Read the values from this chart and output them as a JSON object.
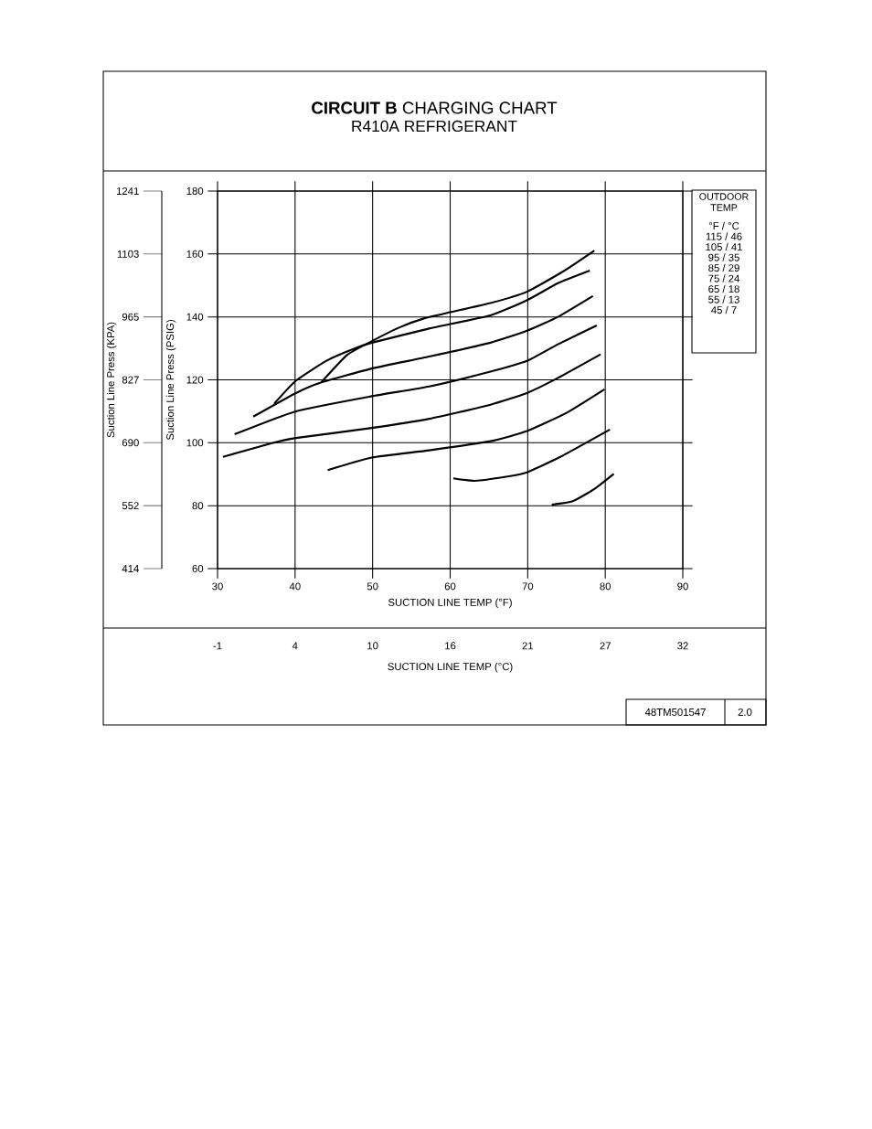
{
  "chart_data": {
    "type": "line",
    "title": "**CIRCUIT B** CHARGING CHART",
    "subtitle": "R410A REFRIGERANT",
    "xlabel": "SUCTION LINE TEMP (°F)",
    "ylabel": "Suction Line Press (PSIG)",
    "y2label": "Suction Line Press (KPA)",
    "x2label": "SUCTION LINE TEMP (°C)",
    "legend_title": "OUTDOOR TEMP",
    "annotations": [
      "°F / °C",
      "115 / 46",
      "105 / 41",
      "95 / 35",
      "85 / 29",
      "75 / 24",
      "65 / 18",
      "55 / 13",
      "45 / 7",
      "48TM501547",
      "2.0"
    ],
    "xlim": [
      30,
      90
    ],
    "xticks": [
      30,
      40,
      50,
      60,
      70,
      80,
      90
    ],
    "ylim": [
      60,
      180
    ],
    "yticks": [
      60,
      80,
      100,
      120,
      140,
      160,
      180
    ],
    "y2lim": [
      413.7,
      1241.1
    ],
    "y2ticks": [
      {
        "value": 413.7,
        "label": "414"
      },
      {
        "value": 551.6,
        "label": "552"
      },
      {
        "value": 689.5,
        "label": "690"
      },
      {
        "value": 827.4,
        "label": "827"
      },
      {
        "value": 965.3,
        "label": "965"
      },
      {
        "value": 1103.2,
        "label": "1103"
      },
      {
        "value": 1241.1,
        "label": "1241"
      }
    ],
    "x2lim": [
      -1.11,
      32.22
    ],
    "x2ticks": [
      {
        "value": -1.11,
        "label": "-1"
      },
      {
        "value": 4.44,
        "label": "4"
      },
      {
        "value": 10,
        "label": "10"
      },
      {
        "value": 15.56,
        "label": "16"
      },
      {
        "value": 21.11,
        "label": "21"
      },
      {
        "value": 26.67,
        "label": "27"
      },
      {
        "value": 32.22,
        "label": "32"
      }
    ],
    "grid": true,
    "marker": "none",
    "line_style": "solid",
    "series": [
      {
        "color": "#000000",
        "x": [
          43.4,
          46.7,
          49.9,
          53.4,
          56.6,
          60,
          65.2,
          69.9,
          74.6,
          78.6
        ],
        "values": [
          119.3,
          127.9,
          132.3,
          136.6,
          139.5,
          141.5,
          144.4,
          148,
          154.5,
          161.1
        ]
      },
      {
        "color": "#000000",
        "x": [
          37.3,
          40.1,
          44,
          47.5,
          49.9,
          57.3,
          65.2,
          69.9,
          73.9,
          78
        ],
        "values": [
          112.4,
          119.7,
          126,
          129.8,
          131.8,
          136.3,
          140.5,
          145.3,
          150.7,
          154.7
        ]
      },
      {
        "color": "#000000",
        "x": [
          34.6,
          40.1,
          43.4,
          49.9,
          57.3,
          65.2,
          69.9,
          73.9,
          78.4
        ],
        "values": [
          108.3,
          115.8,
          119.2,
          123.6,
          127.4,
          131.8,
          135.6,
          140,
          146.6
        ]
      },
      {
        "color": "#000000",
        "x": [
          32.2,
          40.1,
          49.9,
          57.3,
          65.2,
          69.9,
          73.9,
          78.9
        ],
        "values": [
          102.7,
          110,
          114.8,
          117.9,
          122.6,
          126,
          131.3,
          137.3
        ]
      },
      {
        "color": "#000000",
        "x": [
          30.7,
          36.9,
          40.1,
          49.9,
          57.3,
          65.2,
          69.9,
          73.9,
          79.4
        ],
        "values": [
          95.5,
          99.8,
          101.5,
          104.7,
          107.6,
          112.1,
          115.8,
          120.6,
          128.1
        ]
      },
      {
        "color": "#000000",
        "x": [
          44.2,
          49.9,
          57.3,
          65.2,
          69.9,
          75,
          79.9
        ],
        "values": [
          91.3,
          95.3,
          97.6,
          100.5,
          103.7,
          109.5,
          117
        ]
      },
      {
        "color": "#000000",
        "x": [
          60.4,
          63.2,
          67.2,
          69.9,
          74.2,
          80.6
        ],
        "values": [
          88.7,
          87.9,
          89.2,
          90.6,
          95.5,
          104.2
        ]
      },
      {
        "color": "#000000",
        "x": [
          73.1,
          75.8,
          78.6,
          81.1
        ],
        "values": [
          80.3,
          81.4,
          85.3,
          90.1
        ]
      }
    ]
  }
}
